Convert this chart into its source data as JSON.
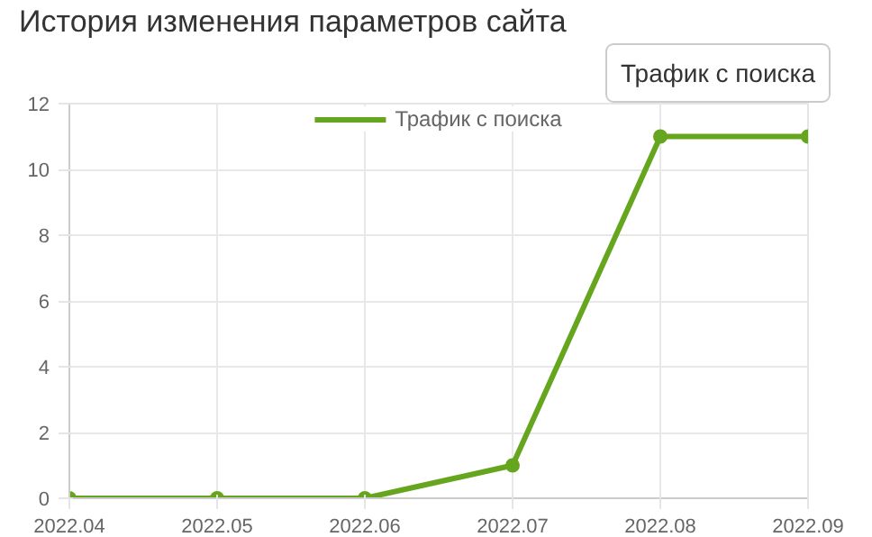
{
  "chart_data": {
    "type": "line",
    "title": "История изменения параметров сайта",
    "annotations": [
      "Трафик с поиска"
    ],
    "categories": [
      "2022.04",
      "2022.05",
      "2022.06",
      "2022.07",
      "2022.08",
      "2022.09"
    ],
    "series": [
      {
        "name": "Трафик с поиска",
        "color": "#66a61e",
        "values": [
          0,
          0,
          0,
          1,
          11,
          11
        ]
      }
    ],
    "ylim": [
      0,
      12
    ],
    "yticks": [
      0,
      2,
      4,
      6,
      8,
      10,
      12
    ],
    "grid": true,
    "legend": "top",
    "marker": "circle",
    "line_style": "solid"
  }
}
